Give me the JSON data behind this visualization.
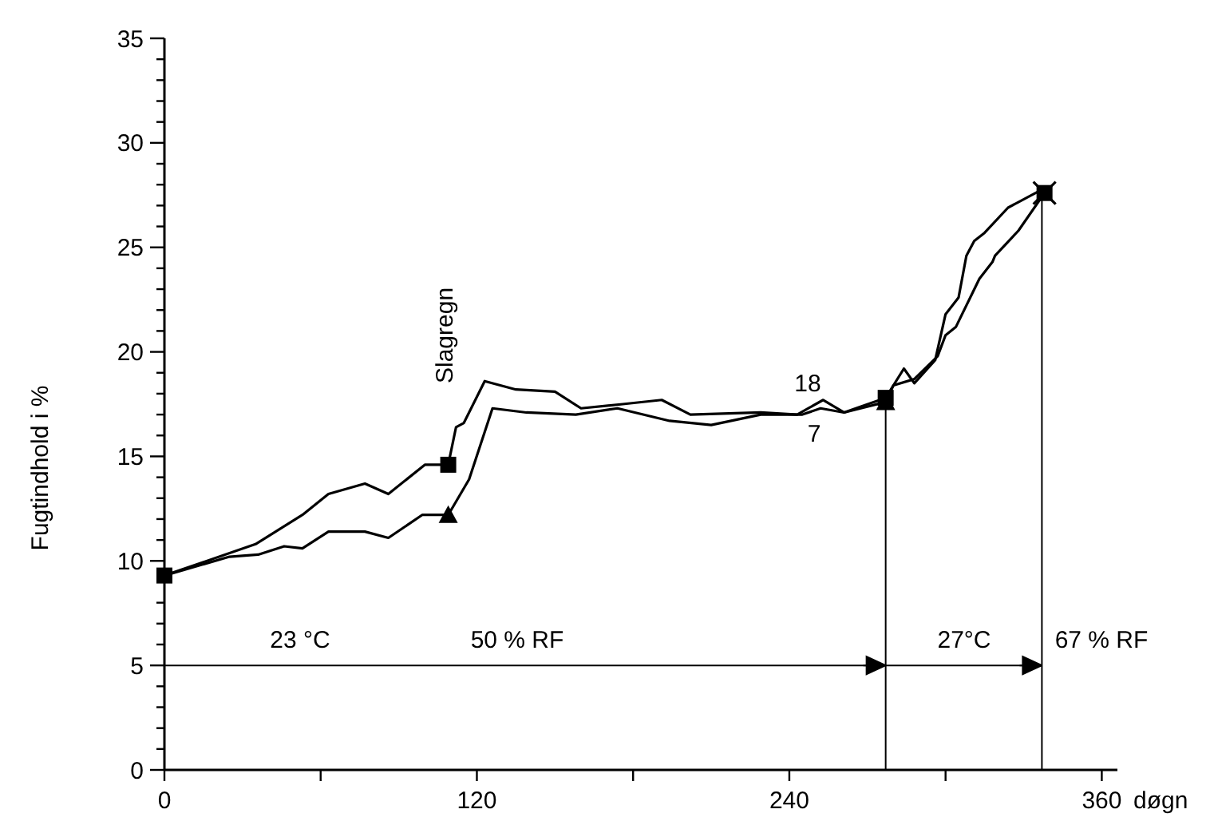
{
  "chart_data": {
    "type": "line",
    "xlabel": "døgn",
    "ylabel": "Fugtindhold i %",
    "xlim": [
      0,
      366
    ],
    "xticks": [
      0,
      {
        "value": 60,
        "label": null
      },
      120,
      {
        "value": 180,
        "label": null
      },
      240,
      {
        "value": 300,
        "label": null
      },
      360
    ],
    "ylim": [
      0,
      35
    ],
    "yticks": [
      0,
      {
        "value": 1,
        "label": null
      },
      {
        "value": 2,
        "label": null
      },
      {
        "value": 3,
        "label": null
      },
      {
        "value": 4,
        "label": null
      },
      5,
      {
        "value": 6,
        "label": null
      },
      {
        "value": 7,
        "label": null
      },
      {
        "value": 8,
        "label": null
      },
      {
        "value": 9,
        "label": null
      },
      10,
      {
        "value": 11,
        "label": null
      },
      {
        "value": 12,
        "label": null
      },
      {
        "value": 13,
        "label": null
      },
      {
        "value": 14,
        "label": null
      },
      15,
      {
        "value": 16,
        "label": null
      },
      {
        "value": 17,
        "label": null
      },
      {
        "value": 18,
        "label": null
      },
      {
        "value": 19,
        "label": null
      },
      20,
      {
        "value": 21,
        "label": null
      },
      {
        "value": 22,
        "label": null
      },
      {
        "value": 23,
        "label": null
      },
      {
        "value": 24,
        "label": null
      },
      25,
      {
        "value": 26,
        "label": null
      },
      {
        "value": 27,
        "label": null
      },
      {
        "value": 28,
        "label": null
      },
      {
        "value": 29,
        "label": null
      },
      30,
      {
        "value": 31,
        "label": null
      },
      {
        "value": 32,
        "label": null
      },
      {
        "value": 33,
        "label": null
      },
      {
        "value": 34,
        "label": null
      },
      35
    ],
    "marker": "none",
    "line_style": "solid",
    "series": [
      {
        "name": "18",
        "color": "#000000",
        "x": [
          0,
          35,
          53,
          63,
          77,
          86,
          100,
          109,
          112,
          115,
          123,
          135,
          150,
          160,
          176,
          191,
          202,
          229,
          243,
          253,
          261,
          277,
          284,
          288,
          296,
          300,
          305,
          308,
          311,
          315,
          324,
          336,
          338
        ],
        "values": [
          9.3,
          10.8,
          12.2,
          13.2,
          13.7,
          13.2,
          14.6,
          14.6,
          16.4,
          16.6,
          18.6,
          18.2,
          18.1,
          17.3,
          17.5,
          17.7,
          17.0,
          17.1,
          17.0,
          17.7,
          17.1,
          17.8,
          19.2,
          18.5,
          19.6,
          21.8,
          22.6,
          24.6,
          25.3,
          25.7,
          26.9,
          27.7,
          27.6
        ]
      },
      {
        "name": "7",
        "color": "#000000",
        "x": [
          0,
          25,
          36,
          46,
          53,
          63,
          77,
          86,
          99,
          109,
          117,
          126,
          139,
          158,
          174,
          194,
          210,
          229,
          245,
          252,
          261,
          277,
          280,
          288,
          297,
          300,
          304,
          313,
          318,
          319,
          328,
          338
        ],
        "values": [
          9.3,
          10.2,
          10.3,
          10.7,
          10.6,
          11.4,
          11.4,
          11.1,
          12.2,
          12.2,
          13.9,
          17.3,
          17.1,
          17.0,
          17.3,
          16.7,
          16.5,
          17.0,
          17.0,
          17.3,
          17.1,
          17.6,
          18.4,
          18.7,
          19.8,
          20.8,
          21.2,
          23.5,
          24.3,
          24.6,
          25.8,
          27.6
        ]
      },
      {
        "type": "scatter",
        "color": "#000000",
        "marker": "square",
        "x": [
          0,
          109,
          277,
          338
        ],
        "values": [
          9.3,
          14.6,
          17.8,
          27.6
        ]
      },
      {
        "type": "scatter",
        "color": "#000000",
        "marker": "triangle",
        "x": [
          109,
          277
        ],
        "values": [
          12.2,
          17.6
        ]
      },
      {
        "type": "scatter",
        "color": "#000000",
        "marker": "cross",
        "x": [
          338
        ],
        "values": [
          27.6
        ]
      }
    ],
    "ref_lines": [
      {
        "axis": "x",
        "value": 277
      },
      {
        "axis": "x",
        "value": 337
      },
      {
        "axis": "y",
        "value": 5
      }
    ],
    "annotations": [
      "Slagregn",
      "23 °C",
      "50 % RF",
      "27°C",
      "67 % RF"
    ]
  }
}
